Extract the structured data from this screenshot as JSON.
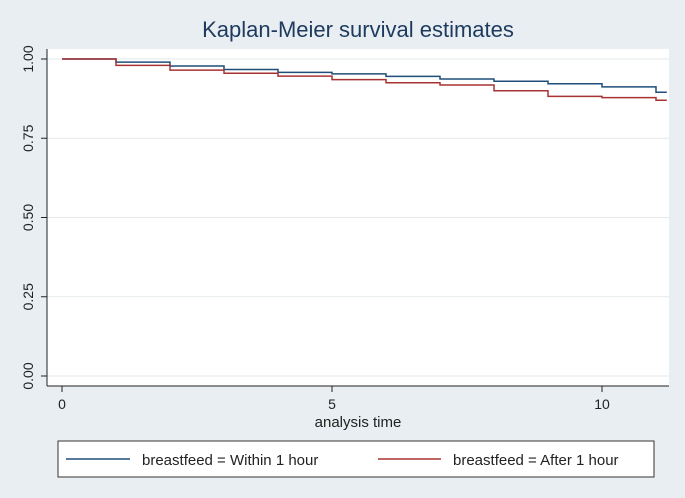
{
  "chart_data": {
    "type": "line",
    "title": "Kaplan-Meier survival estimates",
    "xlabel": "analysis time",
    "ylabel": "",
    "xlim": [
      0,
      11.2
    ],
    "ylim": [
      0,
      1.0
    ],
    "xticks": [
      0,
      5,
      10
    ],
    "xtick_labels": [
      "0",
      "5",
      "10"
    ],
    "yticks": [
      0,
      0.25,
      0.5,
      0.75,
      1.0
    ],
    "ytick_labels": [
      "0.00",
      "0.25",
      "0.50",
      "0.75",
      "1.00"
    ],
    "grid": true,
    "legend_position": "bottom",
    "step": true,
    "series": [
      {
        "name": "breastfeed = Within 1 hour",
        "color": "#1f4e79",
        "x": [
          0,
          1,
          2,
          3,
          4,
          5,
          6,
          7,
          8,
          9,
          10,
          11
        ],
        "y": [
          1.0,
          0.99,
          0.978,
          0.967,
          0.958,
          0.953,
          0.945,
          0.937,
          0.93,
          0.922,
          0.912,
          0.895
        ]
      },
      {
        "name": "breastfeed = After 1 hour",
        "color": "#a83232",
        "x": [
          0,
          1,
          2,
          3,
          4,
          5,
          6,
          7,
          8,
          9,
          10,
          11
        ],
        "y": [
          1.0,
          0.98,
          0.965,
          0.955,
          0.946,
          0.935,
          0.925,
          0.918,
          0.9,
          0.882,
          0.878,
          0.87
        ]
      }
    ]
  }
}
